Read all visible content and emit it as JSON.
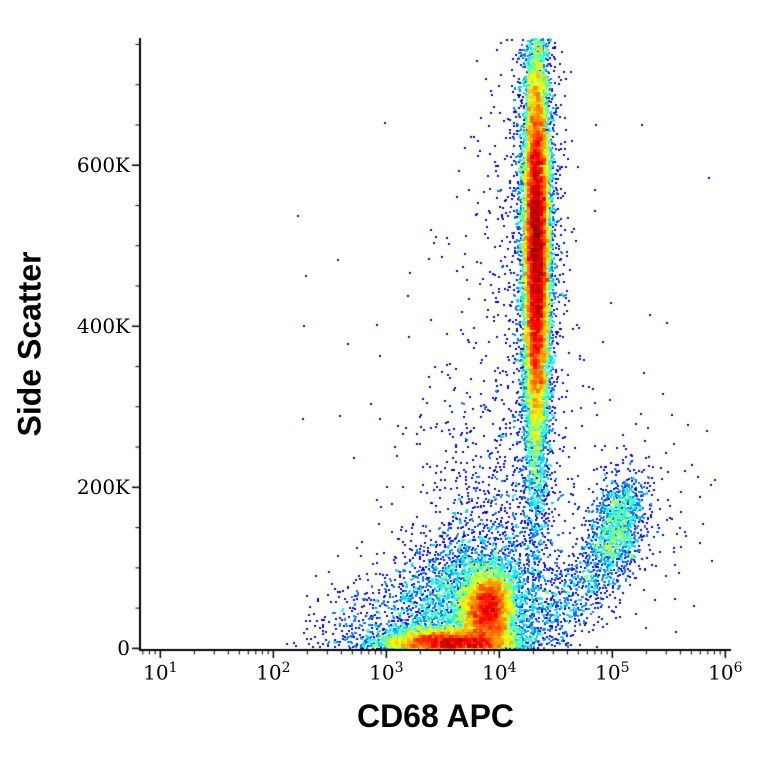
{
  "chart_data": {
    "type": "scatter",
    "subtype": "flow_cytometry_pseudocolor_density",
    "title": "",
    "xlabel": "CD68 APC",
    "ylabel": "Side Scatter",
    "x_scale": "log10",
    "x_range_log10": [
      0.82,
      6.05
    ],
    "y_range": [
      -2000,
      758000
    ],
    "x_ticks": [
      {
        "log10": 1,
        "base": "10",
        "exp": "1"
      },
      {
        "log10": 2,
        "base": "10",
        "exp": "2"
      },
      {
        "log10": 3,
        "base": "10",
        "exp": "3"
      },
      {
        "log10": 4,
        "base": "10",
        "exp": "4"
      },
      {
        "log10": 5,
        "base": "10",
        "exp": "5"
      },
      {
        "log10": 6,
        "base": "10",
        "exp": "6"
      }
    ],
    "x_minor_tick_mantissas": [
      2,
      3,
      4,
      5,
      6,
      7,
      8,
      9
    ],
    "y_ticks": [
      {
        "value": 0,
        "label": "0"
      },
      {
        "value": 200000,
        "label": "200K"
      },
      {
        "value": 400000,
        "label": "400K"
      },
      {
        "value": 600000,
        "label": "600K"
      }
    ],
    "y_minor_tick_step": 50000,
    "grid": false,
    "legend": false,
    "colormap": "jet",
    "background_color": "#ffffff",
    "axis_color": "#000000",
    "random_seed": 1234,
    "density_cap_per_bin": 55,
    "populations": [
      {
        "name": "granulocyte-column-core",
        "cx_log10": 4.33,
        "cy": 500000,
        "sx_log10": 0.055,
        "sy": 120000,
        "rho": 0,
        "count": 18000
      },
      {
        "name": "granulocyte-column-halo",
        "cx_log10": 4.33,
        "cy": 500000,
        "sx_log10": 0.11,
        "sy": 170000,
        "rho": 0,
        "count": 2000
      },
      {
        "name": "column-lower-sparse",
        "cx_log10": 4.33,
        "cy": 220000,
        "sx_log10": 0.07,
        "sy": 90000,
        "rho": 0,
        "count": 300
      },
      {
        "name": "upper-left-sparse",
        "cx_log10": 4.15,
        "cy": 550000,
        "sx_log10": 0.22,
        "sy": 130000,
        "rho": 0,
        "count": 180
      },
      {
        "name": "bottom-streak",
        "cx_log10": 3.55,
        "cy": 6000,
        "sx_log10": 0.28,
        "sy": 9000,
        "rho": 0,
        "count": 5500
      },
      {
        "name": "monocyte-blob",
        "cx_log10": 3.9,
        "cy": 48000,
        "sx_log10": 0.11,
        "sy": 24000,
        "rho": 0,
        "count": 5000
      },
      {
        "name": "bottom-diffuse",
        "cx_log10": 3.75,
        "cy": 50000,
        "sx_log10": 0.35,
        "sy": 45000,
        "rho": 0,
        "count": 3200
      },
      {
        "name": "bottom-left-sparse",
        "cx_log10": 3.1,
        "cy": 25000,
        "sx_log10": 0.35,
        "sy": 30000,
        "rho": 0,
        "count": 600
      },
      {
        "name": "debris-left-dots",
        "cx_log10": 2.6,
        "cy": 6000,
        "sx_log10": 0.3,
        "sy": 7000,
        "rho": 0,
        "count": 50
      },
      {
        "name": "cd68-bright-population",
        "cx_log10": 5.04,
        "cy": 150000,
        "sx_log10": 0.13,
        "sy": 35000,
        "rho": 0.3,
        "count": 1300
      },
      {
        "name": "bridge-to-right",
        "cx_log10": 4.65,
        "cy": 60000,
        "sx_log10": 0.2,
        "sy": 35000,
        "rho": 0.6,
        "count": 450
      },
      {
        "name": "mid-diffuse",
        "cx_log10": 4.0,
        "cy": 150000,
        "sx_log10": 0.35,
        "sy": 100000,
        "rho": 0,
        "count": 900
      },
      {
        "name": "wide-scatter",
        "cx_log10": 4.1,
        "cy": 280000,
        "sx_log10": 0.7,
        "sy": 200000,
        "rho": 0,
        "count": 260
      },
      {
        "name": "far-right-dots",
        "cx_log10": 5.5,
        "cy": 150000,
        "sx_log10": 0.28,
        "sy": 70000,
        "rho": 0,
        "count": 70
      }
    ]
  }
}
